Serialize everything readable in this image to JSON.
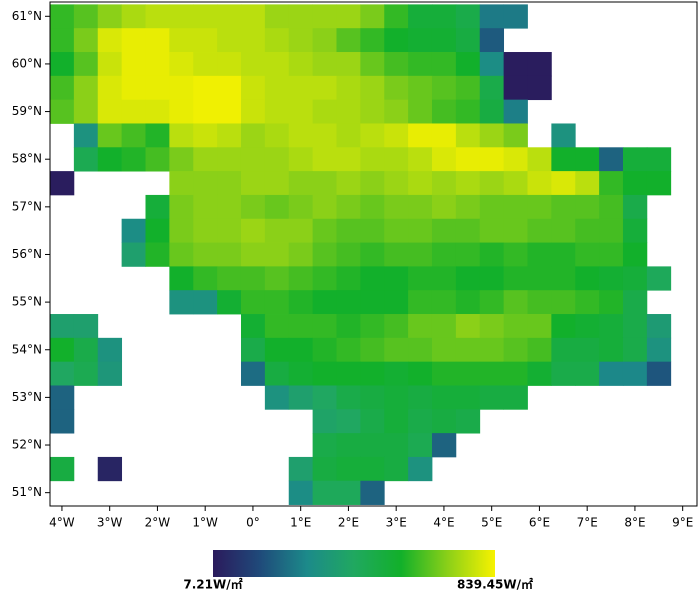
{
  "chart_data": {
    "type": "heatmap",
    "x": [
      -4,
      -3.5,
      -3,
      -2.5,
      -2,
      -1.5,
      -1,
      -0.5,
      0,
      0.5,
      1,
      1.5,
      2,
      2.5,
      3,
      3.5,
      4,
      4.5,
      5,
      5.5,
      6,
      6.5,
      7,
      7.5,
      8,
      8.5
    ],
    "y": [
      61,
      60.5,
      60,
      59.5,
      59,
      58.5,
      58,
      57.5,
      57,
      56.5,
      56,
      55.5,
      55,
      54.5,
      54,
      53.5,
      53,
      52.5,
      52,
      51.5,
      51
    ],
    "values": [
      [
        600,
        640,
        700,
        740,
        760,
        760,
        760,
        760,
        760,
        720,
        720,
        720,
        720,
        680,
        600,
        520,
        520,
        480,
        250,
        250,
        null,
        null,
        null,
        null,
        null,
        null
      ],
      [
        600,
        680,
        800,
        820,
        820,
        780,
        780,
        760,
        760,
        740,
        720,
        700,
        640,
        600,
        560,
        540,
        540,
        500,
        180,
        null,
        null,
        null,
        null,
        null,
        null,
        null
      ],
      [
        560,
        640,
        780,
        820,
        820,
        800,
        780,
        780,
        760,
        760,
        740,
        720,
        720,
        660,
        620,
        600,
        600,
        560,
        300,
        15,
        15,
        null,
        null,
        null,
        null,
        null
      ],
      [
        620,
        700,
        800,
        820,
        820,
        820,
        830,
        830,
        780,
        760,
        760,
        760,
        740,
        720,
        680,
        660,
        640,
        620,
        480,
        15,
        15,
        null,
        null,
        null,
        null,
        null
      ],
      [
        640,
        700,
        800,
        800,
        800,
        820,
        830,
        830,
        780,
        760,
        760,
        740,
        740,
        720,
        700,
        660,
        620,
        600,
        500,
        260,
        null,
        null,
        null,
        null,
        null,
        null
      ],
      [
        null,
        320,
        660,
        620,
        580,
        760,
        780,
        760,
        720,
        740,
        760,
        760,
        740,
        760,
        780,
        820,
        820,
        760,
        720,
        680,
        null,
        320,
        null,
        null,
        null,
        null
      ],
      [
        null,
        460,
        560,
        580,
        620,
        680,
        720,
        720,
        720,
        720,
        740,
        760,
        760,
        740,
        740,
        760,
        800,
        820,
        820,
        800,
        760,
        560,
        560,
        200,
        520,
        520
      ],
      [
        15,
        null,
        null,
        null,
        null,
        700,
        700,
        700,
        720,
        720,
        700,
        700,
        720,
        700,
        720,
        740,
        720,
        740,
        720,
        740,
        780,
        800,
        760,
        600,
        560,
        560
      ],
      [
        null,
        null,
        null,
        null,
        520,
        680,
        700,
        700,
        680,
        660,
        680,
        700,
        680,
        660,
        680,
        680,
        700,
        680,
        660,
        660,
        660,
        640,
        640,
        620,
        480,
        null
      ],
      [
        null,
        null,
        null,
        300,
        560,
        680,
        700,
        700,
        720,
        700,
        700,
        660,
        640,
        640,
        660,
        660,
        640,
        640,
        660,
        660,
        640,
        640,
        620,
        620,
        520,
        null
      ],
      [
        null,
        null,
        null,
        380,
        580,
        660,
        680,
        680,
        700,
        700,
        680,
        640,
        620,
        600,
        620,
        620,
        600,
        600,
        580,
        600,
        580,
        580,
        600,
        600,
        560,
        null
      ],
      [
        null,
        null,
        null,
        null,
        null,
        560,
        600,
        620,
        620,
        640,
        620,
        600,
        580,
        560,
        560,
        580,
        580,
        560,
        560,
        580,
        580,
        580,
        560,
        540,
        520,
        440
      ],
      [
        null,
        null,
        null,
        null,
        null,
        320,
        320,
        540,
        600,
        600,
        580,
        560,
        560,
        560,
        560,
        600,
        600,
        580,
        600,
        640,
        620,
        620,
        600,
        580,
        480,
        null
      ],
      [
        380,
        380,
        null,
        null,
        null,
        null,
        null,
        null,
        540,
        600,
        600,
        600,
        580,
        600,
        620,
        660,
        660,
        700,
        680,
        660,
        660,
        560,
        540,
        520,
        480,
        360
      ],
      [
        560,
        480,
        320,
        null,
        null,
        null,
        null,
        null,
        480,
        560,
        560,
        580,
        600,
        620,
        640,
        640,
        660,
        660,
        660,
        640,
        620,
        500,
        500,
        520,
        480,
        320
      ],
      [
        420,
        460,
        340,
        null,
        null,
        null,
        null,
        null,
        220,
        500,
        540,
        560,
        560,
        560,
        540,
        560,
        580,
        580,
        580,
        580,
        540,
        480,
        480,
        280,
        280,
        170
      ],
      [
        200,
        null,
        null,
        null,
        null,
        null,
        null,
        null,
        null,
        320,
        380,
        420,
        480,
        500,
        520,
        500,
        520,
        520,
        500,
        500,
        null,
        null,
        null,
        null,
        null,
        null
      ],
      [
        200,
        null,
        null,
        null,
        null,
        null,
        null,
        null,
        null,
        null,
        null,
        400,
        420,
        480,
        520,
        480,
        500,
        480,
        null,
        null,
        null,
        null,
        null,
        null,
        null,
        null
      ],
      [
        null,
        null,
        null,
        null,
        null,
        null,
        null,
        null,
        null,
        null,
        null,
        480,
        500,
        500,
        500,
        460,
        200,
        null,
        null,
        null,
        null,
        null,
        null,
        null,
        null,
        null
      ],
      [
        500,
        null,
        40,
        null,
        null,
        null,
        null,
        null,
        null,
        null,
        380,
        500,
        520,
        520,
        500,
        320,
        null,
        null,
        null,
        null,
        null,
        null,
        null,
        null,
        null,
        null
      ],
      [
        null,
        null,
        null,
        null,
        null,
        null,
        null,
        null,
        null,
        null,
        300,
        440,
        440,
        200,
        null,
        null,
        null,
        null,
        null,
        null,
        null,
        null,
        null,
        null,
        null,
        null
      ]
    ],
    "xlim": [
      -4.25,
      9.3
    ],
    "ylim": [
      50.72,
      61.3
    ],
    "xticks": [
      {
        "value": -4,
        "label": "4°W"
      },
      {
        "value": -3,
        "label": "3°W"
      },
      {
        "value": -2,
        "label": "2°W"
      },
      {
        "value": -1,
        "label": "1°W"
      },
      {
        "value": 0,
        "label": "0°"
      },
      {
        "value": 1,
        "label": "1°E"
      },
      {
        "value": 2,
        "label": "2°E"
      },
      {
        "value": 3,
        "label": "3°E"
      },
      {
        "value": 4,
        "label": "4°E"
      },
      {
        "value": 5,
        "label": "5°E"
      },
      {
        "value": 6,
        "label": "6°E"
      },
      {
        "value": 7,
        "label": "7°E"
      },
      {
        "value": 8,
        "label": "8°E"
      },
      {
        "value": 9,
        "label": "9°E"
      }
    ],
    "yticks": [
      {
        "value": 51,
        "label": "51°N"
      },
      {
        "value": 52,
        "label": "52°N"
      },
      {
        "value": 53,
        "label": "53°N"
      },
      {
        "value": 54,
        "label": "54°N"
      },
      {
        "value": 55,
        "label": "55°N"
      },
      {
        "value": 56,
        "label": "56°N"
      },
      {
        "value": 57,
        "label": "57°N"
      },
      {
        "value": 58,
        "label": "58°N"
      },
      {
        "value": 59,
        "label": "59°N"
      },
      {
        "value": 60,
        "label": "60°N"
      },
      {
        "value": 61,
        "label": "61°N"
      }
    ],
    "colorbar_ticks": [
      {
        "value": 7.21,
        "label": "7.21W/㎡"
      },
      {
        "value": 839.45,
        "label": "839.45W/㎡"
      }
    ],
    "colormap": [
      "#2b1a5c",
      "#1f4a7a",
      "#1c8a8a",
      "#20a860",
      "#12b02a",
      "#8cd018",
      "#f7f200"
    ]
  }
}
